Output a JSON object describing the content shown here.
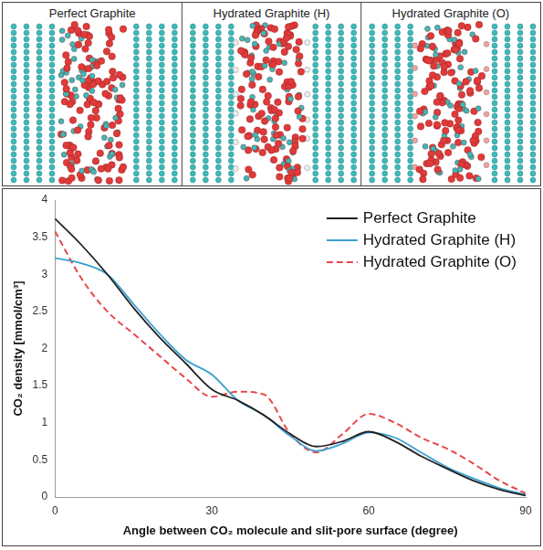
{
  "panels": [
    "Perfect Graphite",
    "Hydrated Graphite (H)",
    "Hydrated Graphite (O)"
  ],
  "chart_data": {
    "type": "line",
    "x_label": "Angle between CO₂ molecule and slit-pore surface (degree)",
    "y_label": "CO₂ density [mmol/cm³]",
    "x": [
      0,
      5,
      10,
      15,
      20,
      25,
      30,
      35,
      40,
      45,
      50,
      55,
      60,
      65,
      70,
      75,
      80,
      85,
      90
    ],
    "series": [
      {
        "name": "Perfect Graphite",
        "color": "#222222",
        "line_style": "solid",
        "marker": "none",
        "values": [
          3.75,
          3.4,
          3.0,
          2.55,
          2.15,
          1.8,
          1.45,
          1.3,
          1.1,
          0.85,
          0.68,
          0.75,
          0.88,
          0.75,
          0.55,
          0.38,
          0.22,
          0.1,
          0.02
        ]
      },
      {
        "name": "Hydrated Graphite (H)",
        "color": "#3a9fd0",
        "line_style": "solid",
        "marker": "none",
        "values": [
          3.22,
          3.15,
          3.0,
          2.6,
          2.2,
          1.85,
          1.65,
          1.3,
          1.1,
          0.82,
          0.62,
          0.72,
          0.87,
          0.8,
          0.6,
          0.4,
          0.25,
          0.12,
          0.03
        ]
      },
      {
        "name": "Hydrated Graphite (O)",
        "color": "#e8474a",
        "line_style": "dashed",
        "marker": "none",
        "values": [
          3.58,
          2.95,
          2.5,
          2.2,
          1.9,
          1.6,
          1.35,
          1.42,
          1.38,
          0.85,
          0.6,
          0.85,
          1.12,
          1.0,
          0.8,
          0.65,
          0.45,
          0.22,
          0.05
        ]
      }
    ],
    "xlim": [
      0,
      90
    ],
    "xticks": [
      0,
      30,
      60,
      90
    ],
    "ylim": [
      0,
      4
    ],
    "yticks": [
      0,
      0.5,
      1,
      1.5,
      2,
      2.5,
      3,
      3.5,
      4
    ],
    "grid": false,
    "legend": "upper right"
  }
}
